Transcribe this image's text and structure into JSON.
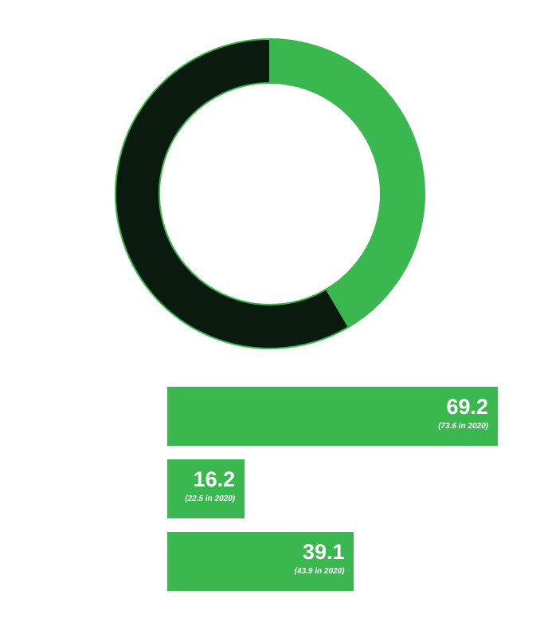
{
  "chart_data": [
    {
      "type": "pie",
      "donut": true,
      "slices": [
        {
          "value": 41.5,
          "color": "#3ab84f"
        },
        {
          "value": 58.5,
          "color": "#0b1a0e"
        }
      ],
      "outline_color": "#3ab84f"
    },
    {
      "type": "bar",
      "orientation": "horizontal",
      "color": "#3ab84f",
      "xlim": [
        0,
        69.2
      ],
      "bars": [
        {
          "value": 69.2,
          "label": "69.2",
          "note": "(73.6 in 2020)"
        },
        {
          "value": 16.2,
          "label": "16.2",
          "note": "(22.5 in 2020)"
        },
        {
          "value": 39.1,
          "label": "39.1",
          "note": "(43.9 in 2020)"
        }
      ]
    }
  ]
}
